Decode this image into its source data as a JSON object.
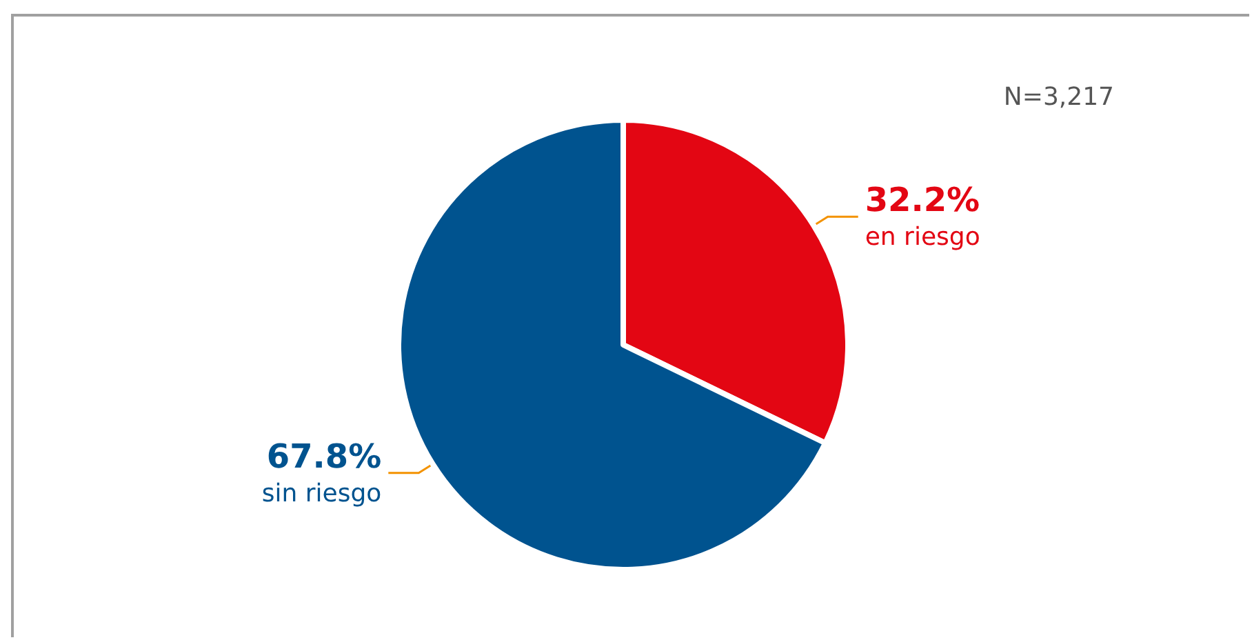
{
  "chart_data": {
    "type": "pie",
    "categories": [
      "en riesgo",
      "sin riesgo"
    ],
    "values": [
      32.2,
      67.8
    ],
    "colors": [
      "#e30613",
      "#00538f"
    ],
    "annotations": [
      "N=3,217"
    ],
    "value_labels": [
      "32.2%",
      "67.8%"
    ],
    "legend": false
  }
}
